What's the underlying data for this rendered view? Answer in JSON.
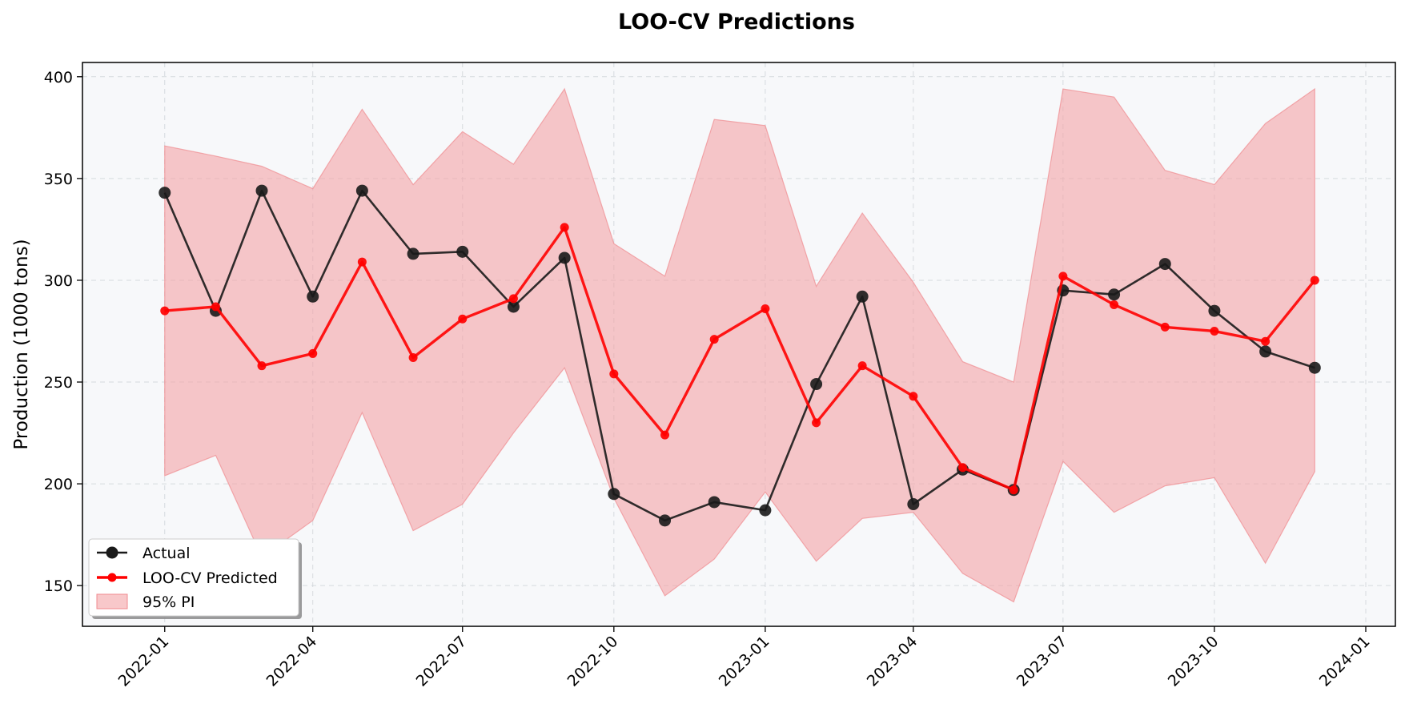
{
  "chart_data": {
    "type": "line",
    "title": "LOO-CV Predictions",
    "xlabel": "",
    "ylabel": "Production (1000 tons)",
    "x": [
      "2022-01",
      "2022-02",
      "2022-03",
      "2022-04",
      "2022-05",
      "2022-06",
      "2022-07",
      "2022-08",
      "2022-09",
      "2022-10",
      "2022-11",
      "2022-12",
      "2023-01",
      "2023-02",
      "2023-03",
      "2023-04",
      "2023-05",
      "2023-06",
      "2023-07",
      "2023-08",
      "2023-09",
      "2023-10",
      "2023-11",
      "2023-12"
    ],
    "xlim": [
      "2021-11-12",
      "2024-01-19"
    ],
    "ylim": [
      130,
      407
    ],
    "x_ticks": [
      "2022-01",
      "2022-04",
      "2022-07",
      "2022-10",
      "2023-01",
      "2023-04",
      "2023-07",
      "2023-10",
      "2024-01"
    ],
    "y_ticks": [
      150,
      200,
      250,
      300,
      350,
      400
    ],
    "grid": true,
    "legend_position": "lower-left",
    "series": [
      {
        "name": "Actual",
        "kind": "line",
        "color": "#1a1a1a",
        "values": [
          343,
          285,
          344,
          292,
          344,
          313,
          314,
          287,
          311,
          195,
          182,
          191,
          187,
          249,
          292,
          190,
          207,
          197,
          295,
          293,
          308,
          285,
          265,
          257
        ]
      },
      {
        "name": "LOO-CV Predicted",
        "kind": "line",
        "color": "#ff0000",
        "values": [
          285,
          287,
          258,
          264,
          309,
          262,
          281,
          291,
          326,
          254,
          224,
          271,
          286,
          230,
          258,
          243,
          208,
          197,
          302,
          288,
          277,
          275,
          270,
          300
        ]
      },
      {
        "name": "95% PI",
        "kind": "band",
        "color": "#f4a3a6",
        "upper": [
          366,
          361,
          356,
          345,
          384,
          347,
          373,
          357,
          394,
          318,
          302,
          379,
          376,
          297,
          333,
          299,
          260,
          250,
          394,
          390,
          354,
          347,
          377,
          394
        ],
        "lower": [
          204,
          214,
          164,
          182,
          235,
          177,
          190,
          225,
          257,
          193,
          145,
          163,
          196,
          162,
          183,
          186,
          156,
          142,
          211,
          186,
          199,
          203,
          161,
          206
        ]
      }
    ]
  }
}
